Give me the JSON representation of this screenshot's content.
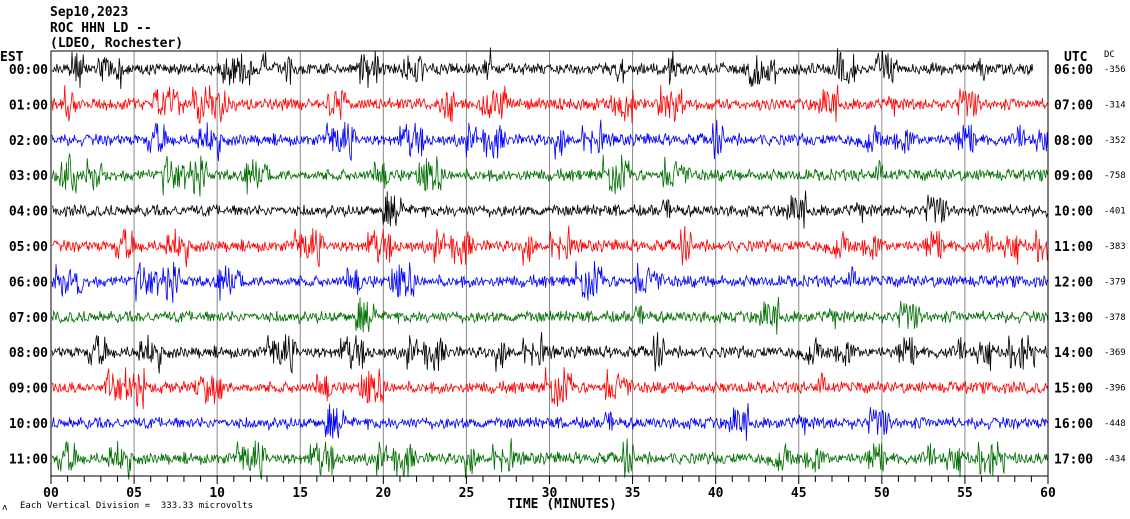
{
  "header": {
    "date": "Sep10,2023",
    "station": "ROC HHN LD --",
    "network": "(LDEO, Rochester)"
  },
  "left_axis_title": "EST",
  "right_axis_title": "UTC",
  "dc_title": "DC",
  "footer": {
    "scale_note": "Each Vertical Division =  333.33 microvolts",
    "logo_glyph": "ʌ"
  },
  "chart_data": {
    "type": "line",
    "xlabel": "TIME (MINUTES)",
    "xlim": [
      0,
      60
    ],
    "x_tick_labels": [
      "00",
      "05",
      "10",
      "15",
      "20",
      "25",
      "30",
      "35",
      "40",
      "45",
      "50",
      "55",
      "60"
    ],
    "x_major_step": 5,
    "x_minor_step": 1,
    "grid": "vertical every 5 minutes",
    "trace_colors": [
      "#000000",
      "#ff0000",
      "#0000ff",
      "#006e00"
    ],
    "rows": [
      {
        "est": "00:00",
        "utc": "06:00",
        "dc": "-356"
      },
      {
        "est": "01:00",
        "utc": "07:00",
        "dc": "-314"
      },
      {
        "est": "02:00",
        "utc": "08:00",
        "dc": "-352"
      },
      {
        "est": "03:00",
        "utc": "09:00",
        "dc": "-758"
      },
      {
        "est": "04:00",
        "utc": "10:00",
        "dc": "-401"
      },
      {
        "est": "05:00",
        "utc": "11:00",
        "dc": "-383"
      },
      {
        "est": "06:00",
        "utc": "12:00",
        "dc": "-379"
      },
      {
        "est": "07:00",
        "utc": "13:00",
        "dc": "-378"
      },
      {
        "est": "08:00",
        "utc": "14:00",
        "dc": "-369"
      },
      {
        "est": "09:00",
        "utc": "15:00",
        "dc": "-396"
      },
      {
        "est": "10:00",
        "utc": "16:00",
        "dc": "-448"
      },
      {
        "est": "11:00",
        "utc": "17:00",
        "dc": "-434"
      }
    ]
  }
}
